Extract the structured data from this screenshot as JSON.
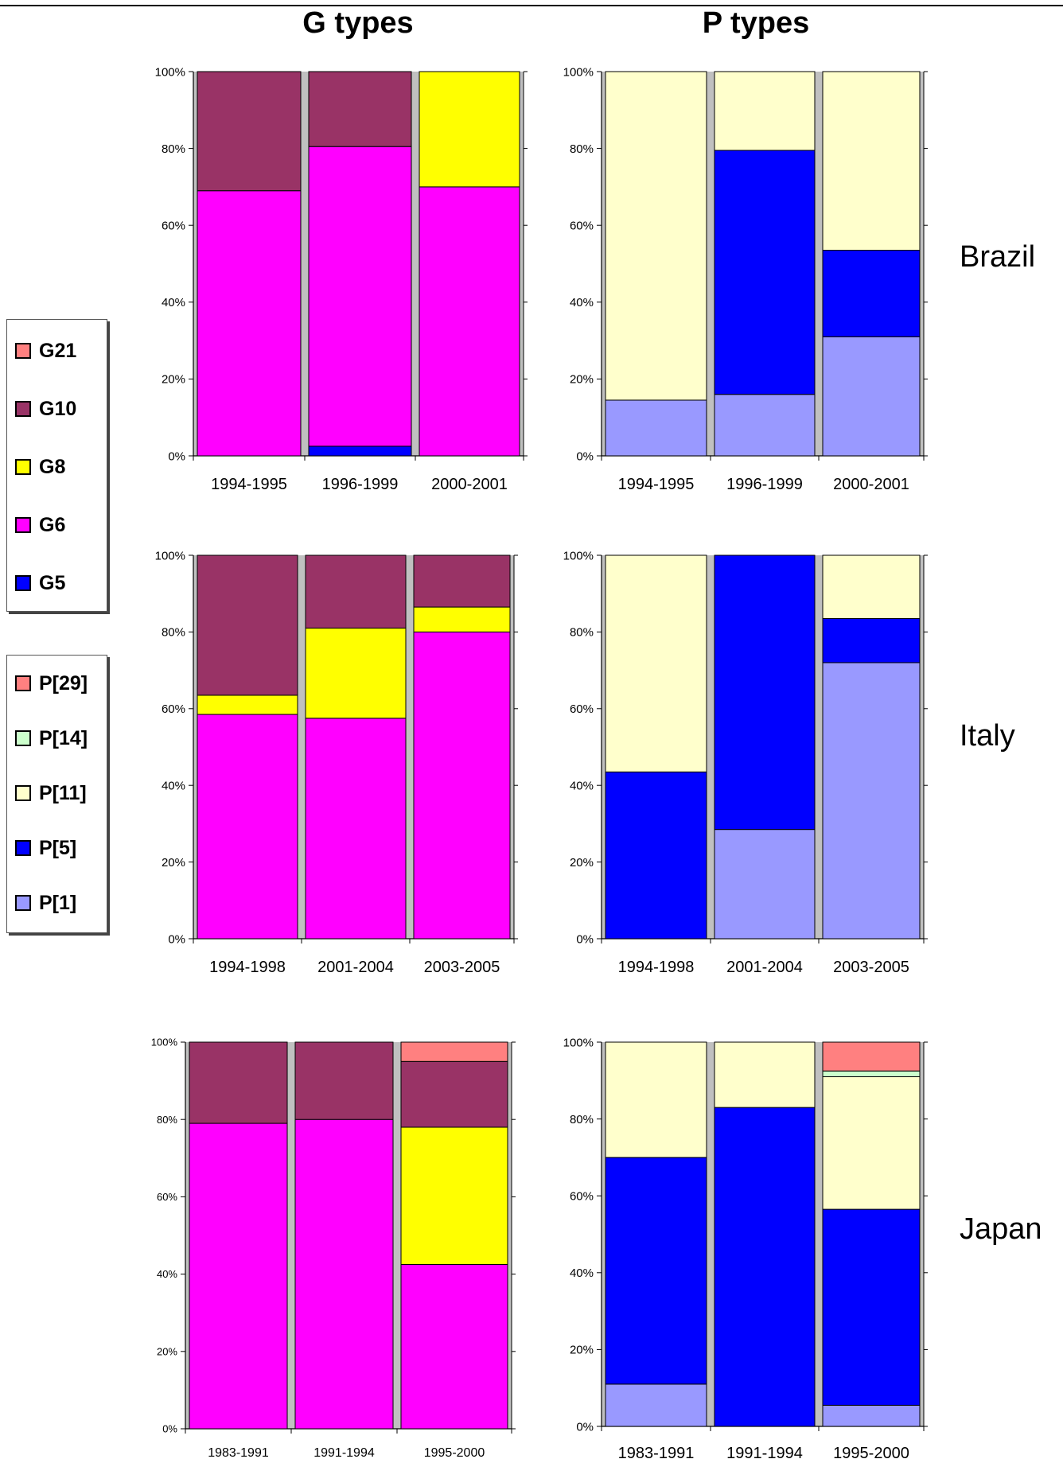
{
  "titles": {
    "g_types": "G types",
    "p_types": "P types"
  },
  "countries": [
    "Brazil",
    "Italy",
    "Japan"
  ],
  "colors": {
    "G21": "#ff8080",
    "G10": "#993366",
    "G8": "#ffff00",
    "G6": "#ff00ff",
    "G5": "#0000ff",
    "P[29]": "#ff8080",
    "P[14]": "#ccffcc",
    "P[11]": "#ffffcc",
    "P[5]": "#0000ff",
    "P[1]": "#9999ff",
    "wall": "#c0c0c0"
  },
  "legend_g": [
    {
      "label": "G21",
      "color": "#ff8080"
    },
    {
      "label": "G10",
      "color": "#993366"
    },
    {
      "label": "G8",
      "color": "#ffff00"
    },
    {
      "label": "G6",
      "color": "#ff00ff"
    },
    {
      "label": "G5",
      "color": "#0000ff"
    }
  ],
  "legend_p": [
    {
      "label": "P[29]",
      "color": "#ff8080"
    },
    {
      "label": "P[14]",
      "color": "#ccffcc"
    },
    {
      "label": "P[11]",
      "color": "#ffffcc"
    },
    {
      "label": "P[5]",
      "color": "#0000ff"
    },
    {
      "label": "P[1]",
      "color": "#9999ff"
    }
  ],
  "chart_data": [
    {
      "type": "bar",
      "stacked": true,
      "country": "Brazil",
      "panel": "G types",
      "categories": [
        "1994-1995",
        "1996-1999",
        "2000-2001"
      ],
      "yticks": [
        "0%",
        "20%",
        "40%",
        "60%",
        "80%",
        "100%"
      ],
      "ylim": [
        0,
        100
      ],
      "series": [
        {
          "name": "G5",
          "values": [
            0,
            2.5,
            0
          ]
        },
        {
          "name": "G6",
          "values": [
            69,
            78,
            70
          ]
        },
        {
          "name": "G8",
          "values": [
            0,
            0,
            30
          ]
        },
        {
          "name": "G10",
          "values": [
            31,
            19.5,
            0
          ]
        },
        {
          "name": "G21",
          "values": [
            0,
            0,
            0
          ]
        }
      ]
    },
    {
      "type": "bar",
      "stacked": true,
      "country": "Brazil",
      "panel": "P types",
      "categories": [
        "1994-1995",
        "1996-1999",
        "2000-2001"
      ],
      "yticks": [
        "0%",
        "20%",
        "40%",
        "60%",
        "80%",
        "100%"
      ],
      "ylim": [
        0,
        100
      ],
      "series": [
        {
          "name": "P[1]",
          "values": [
            14.5,
            16,
            31
          ]
        },
        {
          "name": "P[5]",
          "values": [
            0,
            63.5,
            22.5
          ]
        },
        {
          "name": "P[11]",
          "values": [
            85.5,
            20.5,
            46.5
          ]
        },
        {
          "name": "P[14]",
          "values": [
            0,
            0,
            0
          ]
        },
        {
          "name": "P[29]",
          "values": [
            0,
            0,
            0
          ]
        }
      ]
    },
    {
      "type": "bar",
      "stacked": true,
      "country": "Italy",
      "panel": "G types",
      "categories": [
        "1994-1998",
        "2001-2004",
        "2003-2005"
      ],
      "yticks": [
        "0%",
        "20%",
        "40%",
        "60%",
        "80%",
        "100%"
      ],
      "ylim": [
        0,
        100
      ],
      "series": [
        {
          "name": "G5",
          "values": [
            0,
            0,
            0
          ]
        },
        {
          "name": "G6",
          "values": [
            58.5,
            57.5,
            80
          ]
        },
        {
          "name": "G8",
          "values": [
            5,
            23.5,
            6.5
          ]
        },
        {
          "name": "G10",
          "values": [
            36.5,
            19,
            13.5
          ]
        },
        {
          "name": "G21",
          "values": [
            0,
            0,
            0
          ]
        }
      ]
    },
    {
      "type": "bar",
      "stacked": true,
      "country": "Italy",
      "panel": "P types",
      "categories": [
        "1994-1998",
        "2001-2004",
        "2003-2005"
      ],
      "yticks": [
        "0%",
        "20%",
        "40%",
        "60%",
        "80%",
        "100%"
      ],
      "ylim": [
        0,
        100
      ],
      "series": [
        {
          "name": "P[1]",
          "values": [
            0,
            28.5,
            72
          ]
        },
        {
          "name": "P[5]",
          "values": [
            43.5,
            71.5,
            11.5
          ]
        },
        {
          "name": "P[11]",
          "values": [
            56.5,
            0,
            16.5
          ]
        },
        {
          "name": "P[14]",
          "values": [
            0,
            0,
            0
          ]
        },
        {
          "name": "P[29]",
          "values": [
            0,
            0,
            0
          ]
        }
      ]
    },
    {
      "type": "bar",
      "stacked": true,
      "country": "Japan",
      "panel": "G types",
      "categories": [
        "1983-1991",
        "1991-1994",
        "1995-2000"
      ],
      "yticks": [
        "0%",
        "20%",
        "40%",
        "60%",
        "80%",
        "100%"
      ],
      "ylim": [
        0,
        100
      ],
      "series": [
        {
          "name": "G5",
          "values": [
            0,
            0,
            0
          ]
        },
        {
          "name": "G6",
          "values": [
            79,
            80,
            42.5
          ]
        },
        {
          "name": "G8",
          "values": [
            0,
            0,
            35.5
          ]
        },
        {
          "name": "G10",
          "values": [
            21,
            20,
            17
          ]
        },
        {
          "name": "G21",
          "values": [
            0,
            0,
            5
          ]
        }
      ]
    },
    {
      "type": "bar",
      "stacked": true,
      "country": "Japan",
      "panel": "P types",
      "categories": [
        "1983-1991",
        "1991-1994",
        "1995-2000"
      ],
      "yticks": [
        "0%",
        "20%",
        "40%",
        "60%",
        "80%",
        "100%"
      ],
      "ylim": [
        0,
        100
      ],
      "series": [
        {
          "name": "P[1]",
          "values": [
            11,
            0,
            5.5
          ]
        },
        {
          "name": "P[5]",
          "values": [
            59,
            83,
            51
          ]
        },
        {
          "name": "P[11]",
          "values": [
            30,
            17,
            34.5
          ]
        },
        {
          "name": "P[14]",
          "values": [
            0,
            0,
            1.5
          ]
        },
        {
          "name": "P[29]",
          "values": [
            0,
            0,
            7.5
          ]
        }
      ]
    }
  ]
}
